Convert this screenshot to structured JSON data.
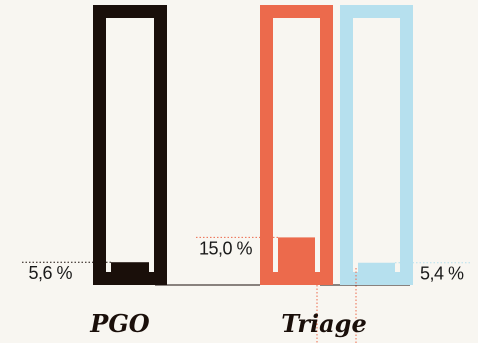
{
  "chart_data": {
    "type": "bar",
    "title": "",
    "xlabel": "",
    "ylabel": "",
    "ylim": [
      0,
      100
    ],
    "categories": [
      "PGO",
      "Triage",
      ""
    ],
    "series": [
      {
        "values": [
          5.6,
          15.0,
          5.4
        ],
        "labels": [
          "5,6 %",
          "15,0 %",
          "5,4 %"
        ],
        "colors": [
          "#1a0f0a",
          "#ec6a4c",
          "#b6e0ee"
        ]
      }
    ],
    "grid": false,
    "legend": "none"
  }
}
